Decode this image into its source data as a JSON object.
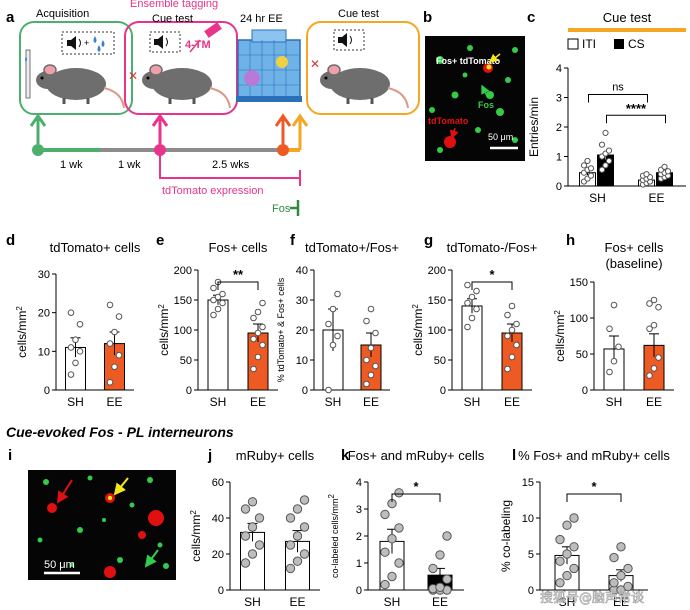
{
  "colors": {
    "ee_orange": "#ee5a24",
    "sh_white": "#ffffff",
    "pink": "#e8348a",
    "green": "#4caf6e",
    "cue_orange": "#f5a623",
    "grey_line": "#8c8c8c",
    "dot_grey": "#bdbdbd",
    "fos_green": "#2e8b3e",
    "micro_bg": "#050505",
    "micro_green": "#33cc4a",
    "micro_red": "#e01010",
    "micro_yellow": "#f7e718"
  },
  "panel_a": {
    "letter": "a",
    "box1_title": "Acquisition",
    "box2_title": "Cue test",
    "box2_caption": "Ensemble tagging",
    "box3_title": "24 hr EE",
    "box4_title": "Cue test",
    "drug_label": "4-TM",
    "interval1": "1 wk",
    "interval2": "1 wk",
    "interval3": "2.5 wks",
    "expression_label": "tdTomato expression",
    "fos_label": "Fos",
    "speaker_icon": "speaker-icon",
    "drops_icon": "water-drops-icon",
    "mouse_icon": "mouse-icon"
  },
  "panel_b": {
    "letter": "b",
    "label_fos_td": "Fos+ tdTomato",
    "label_fos": "Fos",
    "label_td": "tdTomato",
    "scalebar": "50 μm"
  },
  "panel_i": {
    "letter": "i",
    "scalebar": "50 μm"
  },
  "section_title": "Cue-evoked Fos - PL interneurons",
  "watermark": "搜狐号@脑声常谈",
  "chart_data": [
    {
      "id": "c",
      "type": "bar",
      "title": "Cue test",
      "legend": [
        "ITI",
        "CS"
      ],
      "legend_position": "top",
      "categories": [
        "SH",
        "EE"
      ],
      "ylabel": "Entries/min",
      "ylim": [
        0,
        4
      ],
      "yticks": [
        0,
        1,
        2,
        3,
        4
      ],
      "series": [
        {
          "name": "ITI",
          "values": [
            0.45,
            0.2
          ],
          "points": [
            [
              0.15,
              0.25,
              0.35,
              0.45,
              0.55,
              0.6,
              0.7,
              0.85
            ],
            [
              0.05,
              0.1,
              0.15,
              0.2,
              0.25,
              0.3,
              0.35,
              0.4
            ]
          ]
        },
        {
          "name": "CS",
          "values": [
            1.05,
            0.45
          ],
          "points": [
            [
              0.55,
              0.7,
              0.85,
              1.0,
              1.1,
              1.2,
              1.4,
              1.8
            ],
            [
              0.25,
              0.3,
              0.35,
              0.4,
              0.45,
              0.5,
              0.55,
              0.65
            ]
          ]
        }
      ],
      "sem": [
        [
          0.08,
          0.05
        ],
        [
          0.15,
          0.06
        ]
      ],
      "comparisons": [
        {
          "label": "ns"
        },
        {
          "label": "****"
        }
      ]
    },
    {
      "id": "d",
      "type": "bar",
      "title": "tdTomato+ cells",
      "categories": [
        "SH",
        "EE"
      ],
      "values": [
        11,
        12
      ],
      "sem": [
        2.5,
        3
      ],
      "ylabel": "cells/mm2",
      "ylim": [
        0,
        30
      ],
      "yticks": [
        0,
        10,
        20,
        30
      ],
      "points": [
        [
          4,
          7,
          10,
          11,
          13,
          17,
          20
        ],
        [
          2,
          6,
          9,
          12,
          15,
          19,
          22
        ]
      ]
    },
    {
      "id": "e",
      "type": "bar",
      "title": "Fos+ cells",
      "categories": [
        "SH",
        "EE"
      ],
      "values": [
        150,
        95
      ],
      "sem": [
        8,
        15
      ],
      "ylabel": "cells/mm2",
      "ylim": [
        0,
        200
      ],
      "yticks": [
        0,
        50,
        100,
        150,
        200
      ],
      "points": [
        [
          125,
          135,
          145,
          150,
          155,
          160,
          170,
          180
        ],
        [
          35,
          55,
          75,
          85,
          95,
          105,
          120,
          130,
          145
        ]
      ],
      "comparisons": [
        {
          "label": "**"
        }
      ]
    },
    {
      "id": "f",
      "type": "bar",
      "title": "tdTomato+/Fos+",
      "categories": [
        "SH",
        "EE"
      ],
      "values": [
        20,
        15
      ],
      "sem": [
        7,
        4
      ],
      "ylabel": "% tdTomato+ & Fos+ cells",
      "ylim": [
        0,
        40
      ],
      "yticks": [
        0,
        10,
        20,
        30,
        40
      ],
      "points": [
        [
          0,
          15,
          18,
          22,
          27,
          32
        ],
        [
          2,
          5,
          8,
          10,
          14,
          19,
          23,
          27
        ]
      ]
    },
    {
      "id": "g",
      "type": "bar",
      "title": "tdTomato-/Fos+",
      "categories": [
        "SH",
        "EE"
      ],
      "values": [
        140,
        95
      ],
      "sem": [
        12,
        15
      ],
      "ylabel": "cells/mm2",
      "ylim": [
        0,
        200
      ],
      "yticks": [
        0,
        50,
        100,
        150,
        200
      ],
      "points": [
        [
          105,
          120,
          135,
          145,
          155,
          165,
          175
        ],
        [
          35,
          55,
          75,
          90,
          100,
          110,
          125,
          140
        ]
      ],
      "comparisons": [
        {
          "label": "*"
        }
      ]
    },
    {
      "id": "h",
      "type": "bar",
      "title": "Fos+ cells\n(baseline)",
      "categories": [
        "SH",
        "EE"
      ],
      "values": [
        57,
        62
      ],
      "sem": [
        18,
        16
      ],
      "ylabel": "cells/mm2",
      "ylim": [
        0,
        150
      ],
      "yticks": [
        0,
        50,
        100,
        150
      ],
      "points": [
        [
          25,
          40,
          60,
          85,
          118
        ],
        [
          20,
          30,
          45,
          85,
          90,
          115,
          120,
          125
        ]
      ]
    },
    {
      "id": "j",
      "type": "bar",
      "title": "mRuby+ cells",
      "categories": [
        "SH",
        "EE"
      ],
      "values": [
        32,
        27
      ],
      "sem": [
        5,
        6
      ],
      "ylabel": "cells/mm2",
      "ylim": [
        0,
        60
      ],
      "yticks": [
        0,
        20,
        40,
        60
      ],
      "points": [
        [
          15,
          20,
          25,
          30,
          35,
          40,
          45,
          49
        ],
        [
          12,
          16,
          20,
          25,
          30,
          35,
          40,
          45,
          50
        ]
      ]
    },
    {
      "id": "k",
      "type": "bar",
      "title": "Fos+ and mRuby+ cells",
      "categories": [
        "SH",
        "EE"
      ],
      "values": [
        1.8,
        0.55
      ],
      "sem": [
        0.45,
        0.25
      ],
      "ylabel": "co-labeled cells/mm2",
      "ylim": [
        0,
        4
      ],
      "yticks": [
        0,
        1,
        2,
        3,
        4
      ],
      "points": [
        [
          0.2,
          0.5,
          1.0,
          1.4,
          1.9,
          2.3,
          2.8,
          3.2,
          3.6
        ],
        [
          0,
          0,
          0,
          0.05,
          0.1,
          0.4,
          0.8,
          1.3,
          2.0
        ]
      ],
      "comparisons": [
        {
          "label": "*"
        }
      ]
    },
    {
      "id": "l",
      "type": "bar",
      "title": "% Fos+ and mRuby+ cells",
      "categories": [
        "SH",
        "EE"
      ],
      "values": [
        4.8,
        2.0
      ],
      "sem": [
        1.2,
        0.8
      ],
      "ylabel": "% co-labeling",
      "ylim": [
        0,
        15
      ],
      "yticks": [
        0,
        5,
        10,
        15
      ],
      "points": [
        [
          1,
          2,
          3,
          4,
          5,
          6,
          7,
          9,
          10
        ],
        [
          0,
          0,
          0.5,
          1,
          2,
          3,
          4.5,
          6
        ]
      ],
      "comparisons": [
        {
          "label": "*"
        }
      ]
    }
  ]
}
